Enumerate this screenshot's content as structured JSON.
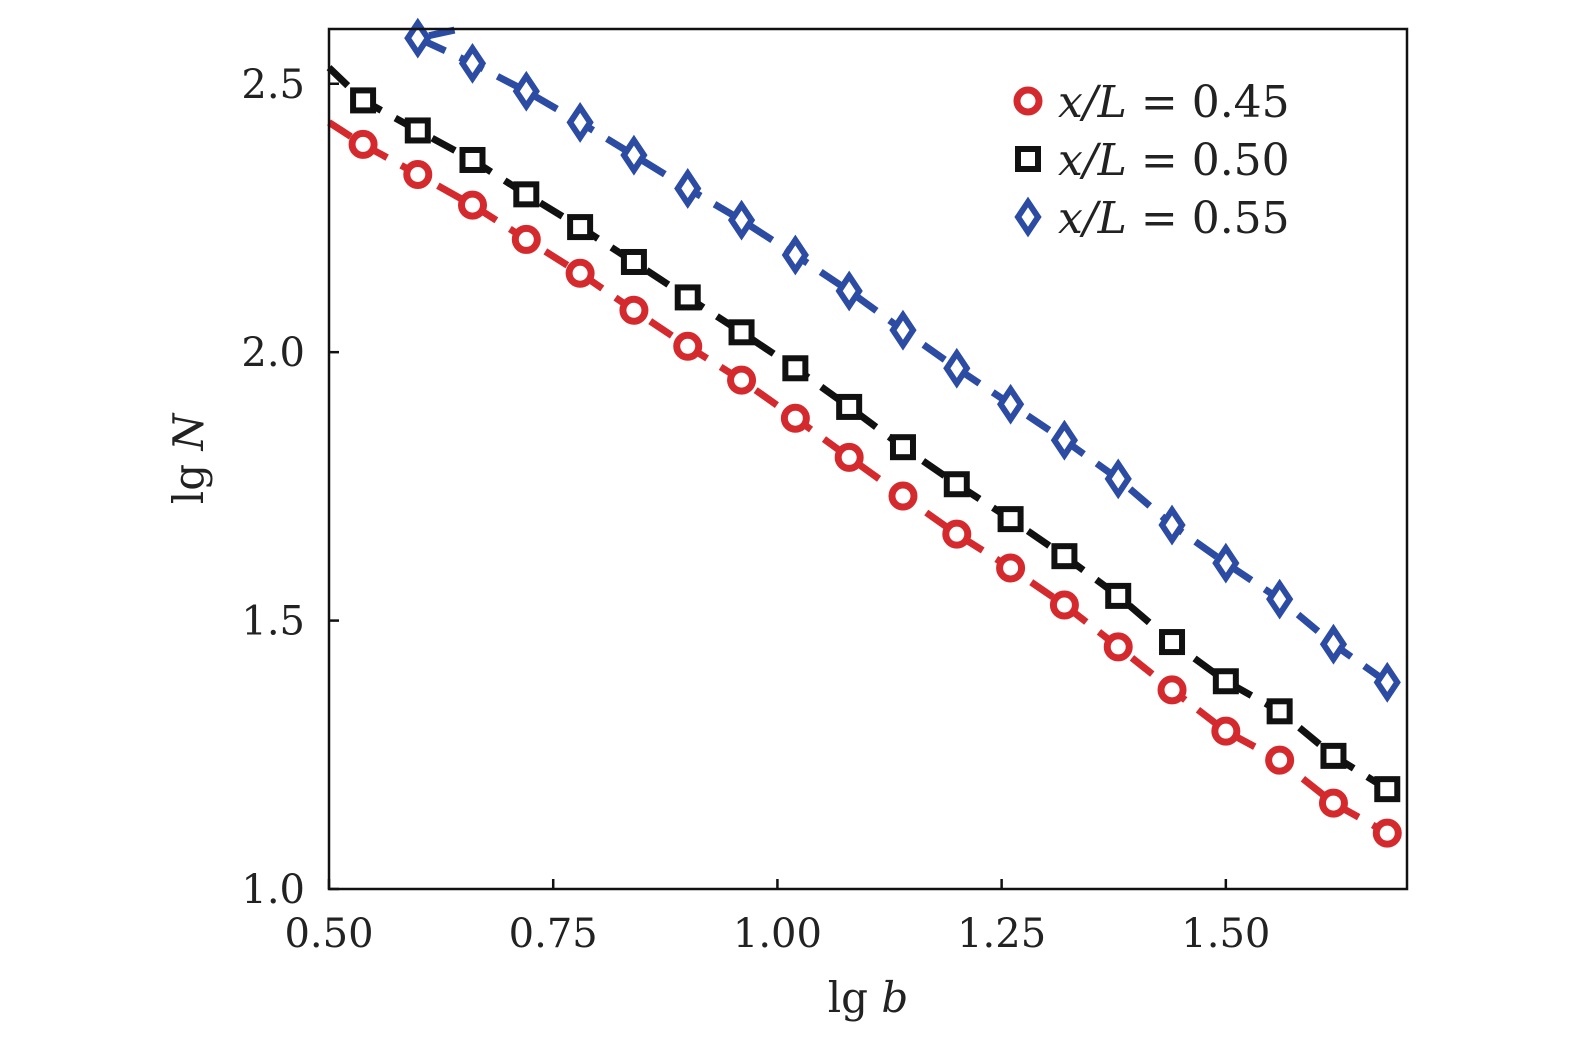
{
  "chart_data": {
    "type": "scatter",
    "title": "",
    "xlabel": {
      "prefix": "lg ",
      "var": "b"
    },
    "ylabel": {
      "prefix": "lg ",
      "var": "N"
    },
    "xlim": [
      0.5,
      1.702
    ],
    "ylim": [
      1.0,
      2.602
    ],
    "xticks": [
      "0.50",
      "0.75",
      "1.00",
      "1.25",
      "1.50"
    ],
    "yticks": [
      "1.0",
      "1.5",
      "2.0",
      "2.5"
    ],
    "grid": false,
    "legend_position": "top-right",
    "series": [
      {
        "name": "x/L = 0.45",
        "name_var": "x/L",
        "name_eq": " = 0.45",
        "marker": "circle",
        "color": "#d42a2e",
        "line": "dashed",
        "x": [
          0.538,
          0.599,
          0.66,
          0.72,
          0.78,
          0.84,
          0.9,
          0.96,
          1.02,
          1.08,
          1.14,
          1.2,
          1.26,
          1.32,
          1.38,
          1.44,
          1.5,
          1.56,
          1.62,
          1.68
        ],
        "y": [
          2.387,
          2.331,
          2.274,
          2.21,
          2.147,
          2.078,
          2.011,
          1.948,
          1.877,
          1.804,
          1.732,
          1.661,
          1.598,
          1.529,
          1.451,
          1.371,
          1.294,
          1.24,
          1.16,
          1.104
        ],
        "line_start": [
          0.5,
          2.428
        ]
      },
      {
        "name": "x/L = 0.50",
        "name_var": "x/L",
        "name_eq": " = 0.50",
        "marker": "square",
        "color": "#111111",
        "line": "dashed",
        "x": [
          0.538,
          0.599,
          0.66,
          0.72,
          0.78,
          0.84,
          0.9,
          0.96,
          1.02,
          1.08,
          1.14,
          1.2,
          1.26,
          1.32,
          1.38,
          1.44,
          1.5,
          1.56,
          1.62,
          1.68
        ],
        "y": [
          2.469,
          2.413,
          2.358,
          2.294,
          2.233,
          2.168,
          2.102,
          2.037,
          1.97,
          1.898,
          1.823,
          1.754,
          1.689,
          1.62,
          1.546,
          1.46,
          1.387,
          1.331,
          1.248,
          1.186
        ],
        "line_start": [
          0.5,
          2.53
        ]
      },
      {
        "name": "x/L = 0.55",
        "name_var": "x/L",
        "name_eq": " = 0.55",
        "marker": "diamond",
        "color": "#2c4ba3",
        "line": "dashed",
        "x": [
          0.599,
          0.66,
          0.72,
          0.78,
          0.84,
          0.9,
          0.96,
          1.02,
          1.08,
          1.14,
          1.2,
          1.26,
          1.32,
          1.38,
          1.44,
          1.5,
          1.56,
          1.62,
          1.68
        ],
        "y": [
          2.585,
          2.538,
          2.486,
          2.428,
          2.367,
          2.305,
          2.246,
          2.181,
          2.114,
          2.041,
          1.97,
          1.903,
          1.836,
          1.764,
          1.678,
          1.607,
          1.54,
          1.456,
          1.385
        ],
        "line_start": [
          0.64,
          2.6
        ]
      }
    ]
  }
}
